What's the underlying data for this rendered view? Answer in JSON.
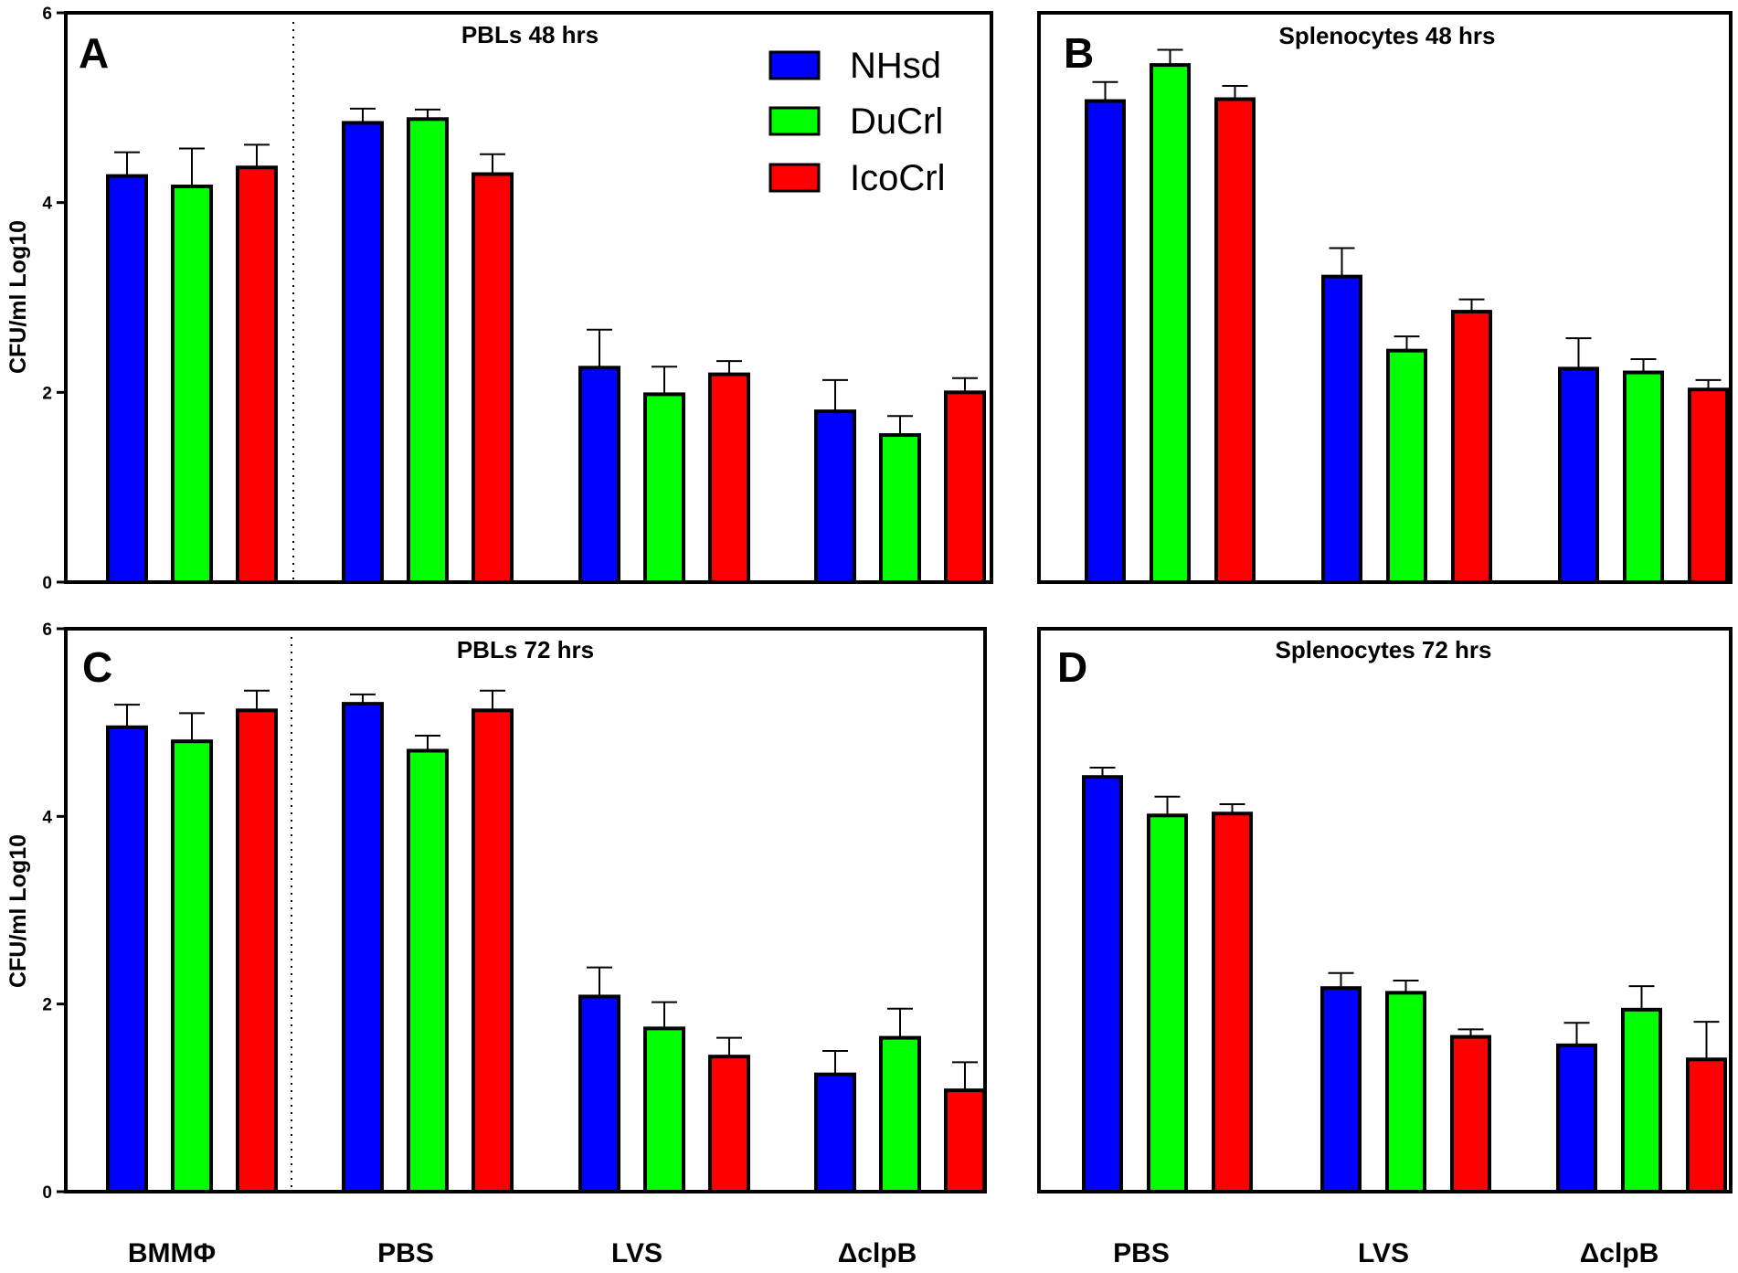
{
  "figure": {
    "series_names": [
      "NHsd",
      "DuCrl",
      "IcoCrl"
    ],
    "colors": [
      "#0000ff",
      "#00ff00",
      "#ff0000"
    ],
    "bottom_labels_left": [
      "BMMΦ",
      "PBS",
      "LVS",
      "ΔclpB"
    ],
    "bottom_labels_right": [
      "PBS",
      "LVS",
      "ΔclpB"
    ]
  },
  "chart_data": [
    {
      "type": "bar",
      "panel": "A",
      "title": "PBLs 48 hrs",
      "ylabel": "CFU/ml Log10",
      "xlabel": "",
      "ylim": [
        0,
        6
      ],
      "yticks": [
        0,
        2,
        4,
        6
      ],
      "categories": [
        "BMMΦ",
        "PBS",
        "LVS",
        "ΔclpB"
      ],
      "legend": "top-right",
      "series": [
        {
          "name": "NHsd",
          "values": [
            4.28,
            4.84,
            2.26,
            1.8
          ],
          "errors": [
            0.25,
            0.15,
            0.4,
            0.33
          ]
        },
        {
          "name": "DuCrl",
          "values": [
            4.17,
            4.88,
            1.98,
            1.55
          ],
          "errors": [
            0.4,
            0.1,
            0.29,
            0.2
          ]
        },
        {
          "name": "IcoCrl",
          "values": [
            4.37,
            4.3,
            2.19,
            2.0
          ],
          "errors": [
            0.24,
            0.21,
            0.14,
            0.15
          ]
        }
      ]
    },
    {
      "type": "bar",
      "panel": "B",
      "title": "Splenocytes 48 hrs",
      "ylabel": "",
      "xlabel": "",
      "ylim": [
        0,
        6
      ],
      "categories": [
        "PBS",
        "LVS",
        "ΔclpB"
      ],
      "series": [
        {
          "name": "NHsd",
          "values": [
            5.07,
            3.22,
            2.25
          ],
          "errors": [
            0.2,
            0.3,
            0.32
          ]
        },
        {
          "name": "DuCrl",
          "values": [
            5.45,
            2.44,
            2.21
          ],
          "errors": [
            0.16,
            0.15,
            0.14
          ]
        },
        {
          "name": "IcoCrl",
          "values": [
            5.09,
            2.85,
            2.03
          ],
          "errors": [
            0.14,
            0.13,
            0.1
          ]
        }
      ]
    },
    {
      "type": "bar",
      "panel": "C",
      "title": "PBLs 72 hrs",
      "ylabel": "CFU/ml Log10",
      "xlabel": "",
      "ylim": [
        0,
        6
      ],
      "yticks": [
        0,
        2,
        4,
        6
      ],
      "categories": [
        "BMMΦ",
        "PBS",
        "LVS",
        "ΔclpB"
      ],
      "series": [
        {
          "name": "NHsd",
          "values": [
            4.95,
            5.2,
            2.08,
            1.25
          ],
          "errors": [
            0.24,
            0.1,
            0.31,
            0.25
          ]
        },
        {
          "name": "DuCrl",
          "values": [
            4.8,
            4.7,
            1.74,
            1.64
          ],
          "errors": [
            0.3,
            0.16,
            0.28,
            0.31
          ]
        },
        {
          "name": "IcoCrl",
          "values": [
            5.13,
            5.13,
            1.44,
            1.08
          ],
          "errors": [
            0.21,
            0.21,
            0.2,
            0.3
          ]
        }
      ]
    },
    {
      "type": "bar",
      "panel": "D",
      "title": "Splenocytes 72 hrs",
      "ylabel": "",
      "xlabel": "",
      "ylim": [
        0,
        6
      ],
      "categories": [
        "PBS",
        "LVS",
        "ΔclpB"
      ],
      "series": [
        {
          "name": "NHsd",
          "values": [
            4.42,
            2.17,
            1.56
          ],
          "errors": [
            0.1,
            0.16,
            0.24
          ]
        },
        {
          "name": "DuCrl",
          "values": [
            4.01,
            2.12,
            1.94
          ],
          "errors": [
            0.2,
            0.13,
            0.25
          ]
        },
        {
          "name": "IcoCrl",
          "values": [
            4.03,
            1.65,
            1.41
          ],
          "errors": [
            0.1,
            0.08,
            0.4
          ]
        }
      ]
    }
  ]
}
